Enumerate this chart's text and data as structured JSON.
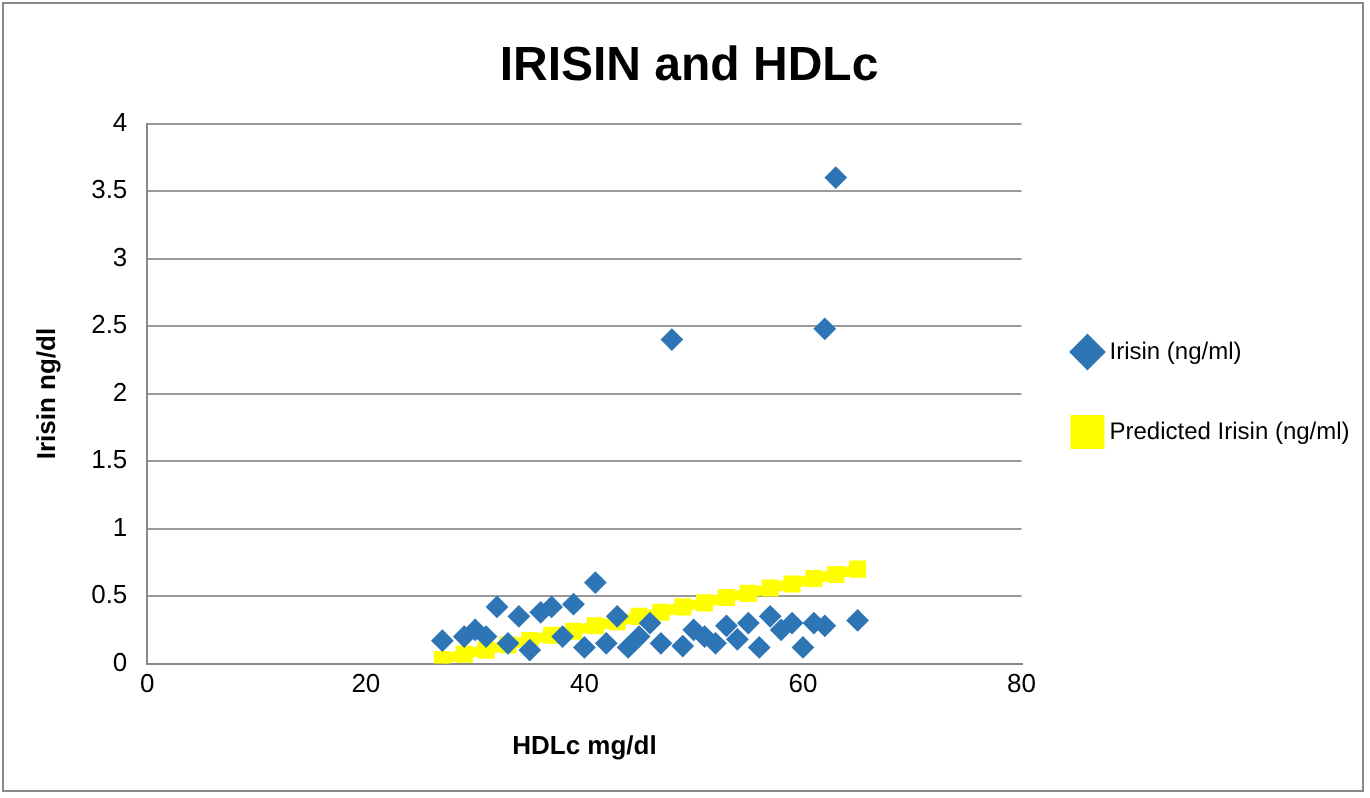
{
  "chart_data": {
    "type": "scatter",
    "title": "IRISIN and HDLc",
    "xlabel": "HDLc mg/dl",
    "ylabel": "Irisin ng/dl",
    "xlim": [
      0,
      80
    ],
    "xticks": [
      0,
      20,
      40,
      60,
      80
    ],
    "ylim": [
      0,
      4
    ],
    "yticks": [
      0,
      0.5,
      1,
      1.5,
      2,
      2.5,
      3,
      3.5,
      4
    ],
    "grid": "y",
    "legend": "right",
    "series": [
      {
        "name": "Irisin (ng/ml)",
        "type": "scatter",
        "marker": "diamond",
        "color": "#2e75b6",
        "x": [
          48,
          62,
          63,
          65,
          41,
          32,
          27,
          30,
          37,
          39,
          34,
          36,
          60,
          56,
          58,
          61,
          62,
          55,
          57,
          52,
          50,
          49,
          47,
          44,
          42,
          40,
          45,
          38,
          33,
          35,
          53,
          46,
          43,
          31,
          29,
          59,
          54,
          51
        ],
        "values": [
          2.4,
          2.48,
          3.6,
          0.32,
          0.6,
          0.42,
          0.17,
          0.25,
          0.42,
          0.44,
          0.35,
          0.38,
          0.12,
          0.12,
          0.25,
          0.3,
          0.28,
          0.3,
          0.35,
          0.15,
          0.25,
          0.13,
          0.15,
          0.12,
          0.15,
          0.12,
          0.2,
          0.2,
          0.15,
          0.1,
          0.28,
          0.3,
          0.35,
          0.2,
          0.2,
          0.3,
          0.18,
          0.2
        ]
      },
      {
        "name": "Predicted Irisin (ng/ml)",
        "type": "line",
        "marker": "square",
        "line_style": "solid",
        "color": "#ffff00",
        "x": [
          27,
          29,
          31,
          33,
          35,
          37,
          39,
          41,
          43,
          45,
          47,
          49,
          51,
          53,
          55,
          57,
          59,
          61,
          63,
          65
        ],
        "values": [
          0.03,
          0.07,
          0.1,
          0.14,
          0.17,
          0.21,
          0.24,
          0.28,
          0.31,
          0.35,
          0.38,
          0.42,
          0.45,
          0.49,
          0.52,
          0.56,
          0.59,
          0.63,
          0.66,
          0.7
        ]
      }
    ]
  }
}
